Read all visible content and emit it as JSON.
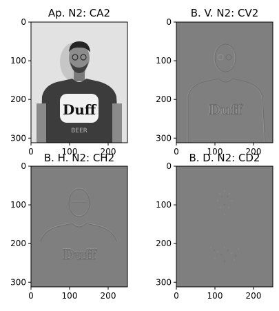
{
  "chart_data": [
    {
      "type": "image",
      "title": "Ap. N2: CA2",
      "xlim": [
        0,
        250
      ],
      "ylim": [
        312,
        0
      ],
      "xticks": [
        "0",
        "100",
        "200"
      ],
      "xtick_values": [
        0,
        100,
        200
      ],
      "yticks": [
        "0",
        "100",
        "200",
        "300"
      ],
      "ytick_values": [
        0,
        100,
        200,
        300
      ],
      "content": "grayscale approximation image of a man in a dark t-shirt with Duff Beer logo"
    },
    {
      "type": "image",
      "title": "B. V. N2: CV2",
      "xlim": [
        0,
        250
      ],
      "ylim": [
        312,
        0
      ],
      "xticks": [
        "0",
        "100",
        "200"
      ],
      "xtick_values": [
        0,
        100,
        200
      ],
      "yticks": [
        "0",
        "100",
        "200",
        "300"
      ],
      "ytick_values": [
        0,
        100,
        200,
        300
      ],
      "content": "vertical detail coefficients, gray with faint edges"
    },
    {
      "type": "image",
      "title": "B. H. N2: CH2",
      "xlim": [
        0,
        250
      ],
      "ylim": [
        312,
        0
      ],
      "xticks": [
        "0",
        "100",
        "200"
      ],
      "xtick_values": [
        0,
        100,
        200
      ],
      "yticks": [
        "0",
        "100",
        "200",
        "300"
      ],
      "ytick_values": [
        0,
        100,
        200,
        300
      ],
      "content": "horizontal detail coefficients, gray with faint edges"
    },
    {
      "type": "image",
      "title": "B. D. N2: CD2",
      "xlim": [
        0,
        250
      ],
      "ylim": [
        312,
        0
      ],
      "xticks": [
        "0",
        "100",
        "200"
      ],
      "xtick_values": [
        0,
        100,
        200
      ],
      "yticks": [
        "0",
        "100",
        "200",
        "300"
      ],
      "ytick_values": [
        0,
        100,
        200,
        300
      ],
      "content": "diagonal detail coefficients, nearly uniform gray"
    }
  ]
}
